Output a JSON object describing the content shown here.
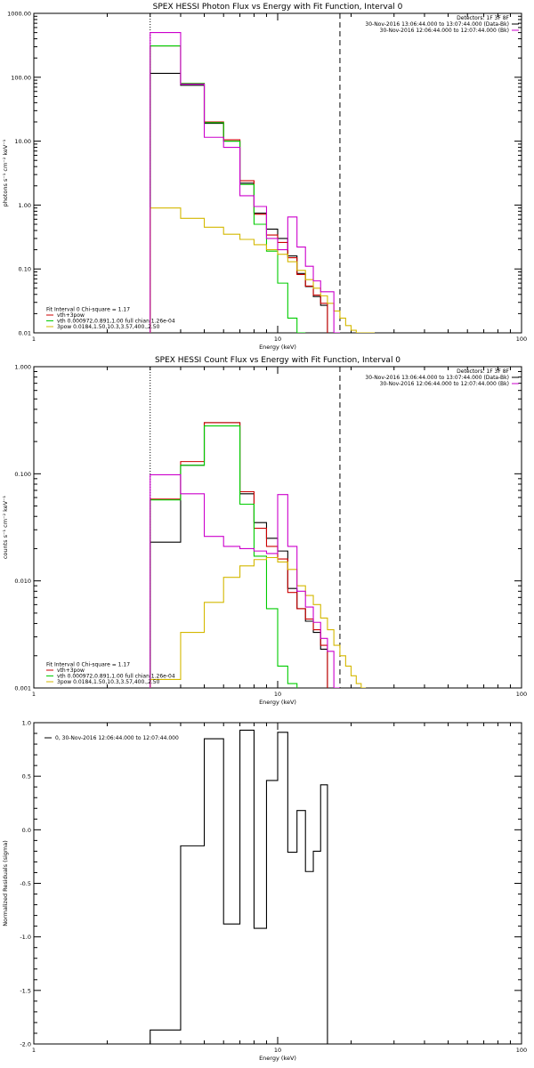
{
  "chart_data": [
    {
      "type": "line",
      "subtype": "step",
      "title": "SPEX HESSI Photon Flux vs Energy with Fit Function, Interval 0",
      "xlabel": "Energy (keV)",
      "ylabel": "photons s⁻¹ cm⁻² keV⁻¹",
      "xscale": "log",
      "yscale": "log",
      "xlim": [
        1,
        100
      ],
      "ylim": [
        0.01,
        1000
      ],
      "x_tick_labels": [
        "1",
        "10",
        "100"
      ],
      "y_tick_labels": [
        "0.01",
        "0.10",
        "1.00",
        "10.00",
        "100.00",
        "1000.00"
      ],
      "y_ticks": [
        0.01,
        0.1,
        1,
        10,
        100,
        1000
      ],
      "bin_edges": [
        3,
        4,
        5,
        6,
        7,
        8,
        9,
        10,
        11,
        12,
        13,
        14,
        15,
        16,
        17,
        18,
        19,
        20,
        21,
        22,
        23,
        24,
        25
      ],
      "vlines": [
        {
          "x": 3,
          "style": "dotted",
          "color": "#000000"
        },
        {
          "x": 18,
          "style": "dashed",
          "color": "#000000"
        }
      ],
      "info_lines": [
        "Detectors: 1F 3F 8F",
        "30-Nov-2016 13:06:44.000 to 13:07:44.000 (Data-Bk)",
        "30-Nov-2016 12:06:44.000 to 12:07:44.000 (Bk)"
      ],
      "info_colors": [
        "#000000",
        "#000000",
        "#cc00cc"
      ],
      "legend": [
        {
          "text": "Fit Interval 0   Chi-square = 1.17",
          "color": null
        },
        {
          "text": "vth+3pow",
          "color": "#cc0000"
        },
        {
          "text": "vth 0.000972,0.891,1.00  full chian 1.26e-04",
          "color": "#00cc00"
        },
        {
          "text": "3pow 0.0184,1.50,10.3,3.57,400.,2.50",
          "color": "#d4b800"
        }
      ],
      "series": [
        {
          "name": "Data-Bk",
          "color": "#000000",
          "values": [
            115,
            75,
            19,
            10,
            2.2,
            0.75,
            0.42,
            0.3,
            0.16,
            0.085,
            0.053,
            0.037,
            0.027
          ]
        },
        {
          "name": "vth+3pow",
          "color": "#cc0000",
          "values": [
            310,
            80,
            20,
            10.5,
            2.4,
            0.72,
            0.34,
            0.26,
            0.15,
            0.082,
            0.054,
            0.039,
            0.029
          ]
        },
        {
          "name": "vth",
          "color": "#00cc00",
          "values": [
            310,
            80,
            19.5,
            10,
            2.1,
            0.5,
            0.19,
            0.06,
            0.017,
            0.0095
          ]
        },
        {
          "name": "3pow",
          "color": "#d4b800",
          "values": [
            0.9,
            0.62,
            0.45,
            0.35,
            0.29,
            0.24,
            0.2,
            0.17,
            0.13,
            0.095,
            0.068,
            0.05,
            0.038,
            0.029,
            0.022,
            0.017,
            0.013,
            0.011,
            0.0098,
            0.0097,
            0.0096,
            0.0095
          ]
        },
        {
          "name": "Bk",
          "color": "#cc00cc",
          "values": [
            500,
            78,
            11.5,
            8,
            1.4,
            0.95,
            0.3,
            0.2,
            0.65,
            0.22,
            0.11,
            0.065,
            0.044,
            0.044,
            0.0095
          ]
        }
      ]
    },
    {
      "type": "line",
      "subtype": "step",
      "title": "SPEX HESSI Count Flux vs Energy with Fit Function, Interval 0",
      "xlabel": "Energy (keV)",
      "ylabel": "counts s⁻¹ cm⁻² keV⁻¹",
      "xscale": "log",
      "yscale": "log",
      "xlim": [
        1,
        100
      ],
      "ylim": [
        0.001,
        1
      ],
      "x_tick_labels": [
        "1",
        "10",
        "100"
      ],
      "y_tick_labels": [
        "0.001",
        "0.010",
        "0.100",
        "1.000"
      ],
      "y_ticks": [
        0.001,
        0.01,
        0.1,
        1
      ],
      "bin_edges": [
        3,
        4,
        5,
        6,
        7,
        8,
        9,
        10,
        11,
        12,
        13,
        14,
        15,
        16,
        17,
        18,
        19,
        20,
        21,
        22,
        23,
        24,
        25
      ],
      "vlines": [
        {
          "x": 3,
          "style": "dotted",
          "color": "#000000"
        },
        {
          "x": 18,
          "style": "dashed",
          "color": "#000000"
        }
      ],
      "info_lines": [
        "Detectors: 1F 3F 8F",
        "30-Nov-2016 13:06:44.000 to 13:07:44.000 (Data-Bk)",
        "30-Nov-2016 12:06:44.000 to 12:07:44.000 (Bk)"
      ],
      "info_colors": [
        "#000000",
        "#000000",
        "#cc00cc"
      ],
      "legend": [
        {
          "text": "Fit Interval 0   Chi-square = 1.17",
          "color": null
        },
        {
          "text": "vth+3pow",
          "color": "#cc0000"
        },
        {
          "text": "vth 0.000972,0.891,1.00  full chian 1.26e-04",
          "color": "#00cc00"
        },
        {
          "text": "3pow 0.0184,1.50,10.3,3.57,400.,2.50",
          "color": "#d4b800"
        }
      ],
      "series": [
        {
          "name": "Data-Bk",
          "color": "#000000",
          "values": [
            0.023,
            0.12,
            0.3,
            0.3,
            0.065,
            0.035,
            0.025,
            0.019,
            0.0085,
            0.0055,
            0.0042,
            0.0033,
            0.0023
          ]
        },
        {
          "name": "vth+3pow",
          "color": "#cc0000",
          "values": [
            0.058,
            0.13,
            0.3,
            0.3,
            0.068,
            0.031,
            0.021,
            0.016,
            0.0078,
            0.0055,
            0.0044,
            0.0035,
            0.0025
          ]
        },
        {
          "name": "vth",
          "color": "#00cc00",
          "values": [
            0.057,
            0.12,
            0.28,
            0.28,
            0.052,
            0.017,
            0.0055,
            0.0016,
            0.0011
          ]
        },
        {
          "name": "3pow",
          "color": "#d4b800",
          "values": [
            0.0012,
            0.0033,
            0.0063,
            0.0108,
            0.0138,
            0.0158,
            0.0165,
            0.015,
            0.0128,
            0.009,
            0.0073,
            0.006,
            0.0045,
            0.0035,
            0.0025,
            0.002,
            0.0016,
            0.0013,
            0.0011,
            0.001
          ]
        },
        {
          "name": "Bk",
          "color": "#cc00cc",
          "values": [
            0.098,
            0.065,
            0.026,
            0.021,
            0.02,
            0.019,
            0.018,
            0.064,
            0.021,
            0.008,
            0.0057,
            0.0041,
            0.0029,
            0.0022,
            0.001
          ]
        }
      ]
    },
    {
      "type": "line",
      "subtype": "step",
      "xlabel": "Energy (keV)",
      "ylabel": "Normalized Residuals (sigma)",
      "xscale": "log",
      "yscale": "linear",
      "xlim": [
        1,
        100
      ],
      "ylim": [
        -2.0,
        1.0
      ],
      "x_tick_labels": [
        "1",
        "10",
        "100"
      ],
      "y_tick_labels": [
        "-2.0",
        "-1.5",
        "-1.0",
        "-0.5",
        "0.0",
        "0.5",
        "1.0"
      ],
      "y_ticks": [
        -2.0,
        -1.5,
        -1.0,
        -0.5,
        0.0,
        0.5,
        1.0
      ],
      "bin_edges": [
        3,
        4,
        5,
        6,
        7,
        8,
        9,
        10,
        11,
        12,
        13,
        14,
        15,
        16,
        17,
        18
      ],
      "legend": [
        {
          "text": "0, 30-Nov-2016 12:06:44.000 to 12:07:44.000",
          "color": "#000000"
        }
      ],
      "series": [
        {
          "color": "#000000",
          "values": [
            -1.87,
            -0.15,
            0.85,
            -0.88,
            0.93,
            -0.92,
            0.46,
            0.91,
            -0.21,
            0.18,
            -0.39,
            -0.2,
            0.42
          ]
        }
      ]
    }
  ]
}
